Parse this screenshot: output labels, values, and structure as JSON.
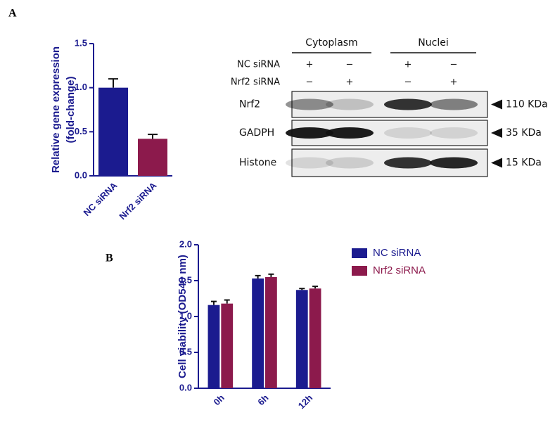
{
  "panel_labels": [
    "A",
    "B"
  ],
  "chart_data": [
    {
      "type": "bar",
      "ylabel": [
        "Relative gene expression",
        "(fold-change)"
      ],
      "categories": [
        "NC siRNA",
        "Nrf2 siRNA"
      ],
      "values": [
        1.0,
        0.42
      ],
      "errors": [
        0.1,
        0.05
      ],
      "colors": [
        "#1b1b8f",
        "#8c1a4c"
      ],
      "ylim": [
        0,
        1.5
      ],
      "yticks": [
        {
          "value": 0,
          "label": "0.0"
        },
        0.5,
        {
          "value": 1,
          "label": "1.0"
        },
        1.5
      ]
    },
    {
      "type": "grouped_bar",
      "ylabel": [
        "Cell viability (OD540 nm)"
      ],
      "categories": [
        "0h",
        "6h",
        "12h"
      ],
      "series": [
        {
          "name": "NC siRNA",
          "color": "#1b1b8f",
          "values": [
            1.16,
            1.53,
            1.37
          ],
          "errors": [
            0.05,
            0.04,
            0.02
          ]
        },
        {
          "name": "Nrf2 siRNA",
          "color": "#8c1a4c",
          "values": [
            1.18,
            1.55,
            1.39
          ],
          "errors": [
            0.05,
            0.04,
            0.03
          ]
        }
      ],
      "ylim": [
        0,
        2
      ],
      "yticks": [
        {
          "value": 0,
          "label": "0.0"
        },
        0.5,
        {
          "value": 1,
          "label": "1.0"
        },
        1.5,
        {
          "value": 2,
          "label": "2.0"
        }
      ],
      "legend": "upper right"
    }
  ],
  "blot": {
    "fractions": [
      "Cytoplasm",
      "Nuclei"
    ],
    "treatments": [
      {
        "name": "NC siRNA",
        "lanes": [
          "+",
          "−",
          "+",
          "−"
        ]
      },
      {
        "name": "Nrf2 siRNA",
        "lanes": [
          "−",
          "+",
          "−",
          "+"
        ]
      }
    ],
    "bands": [
      {
        "name": "Nrf2",
        "size": "110 KDa"
      },
      {
        "name": "GADPH",
        "size": "35 KDa"
      },
      {
        "name": "Histone",
        "size": "15 KDa"
      }
    ]
  }
}
